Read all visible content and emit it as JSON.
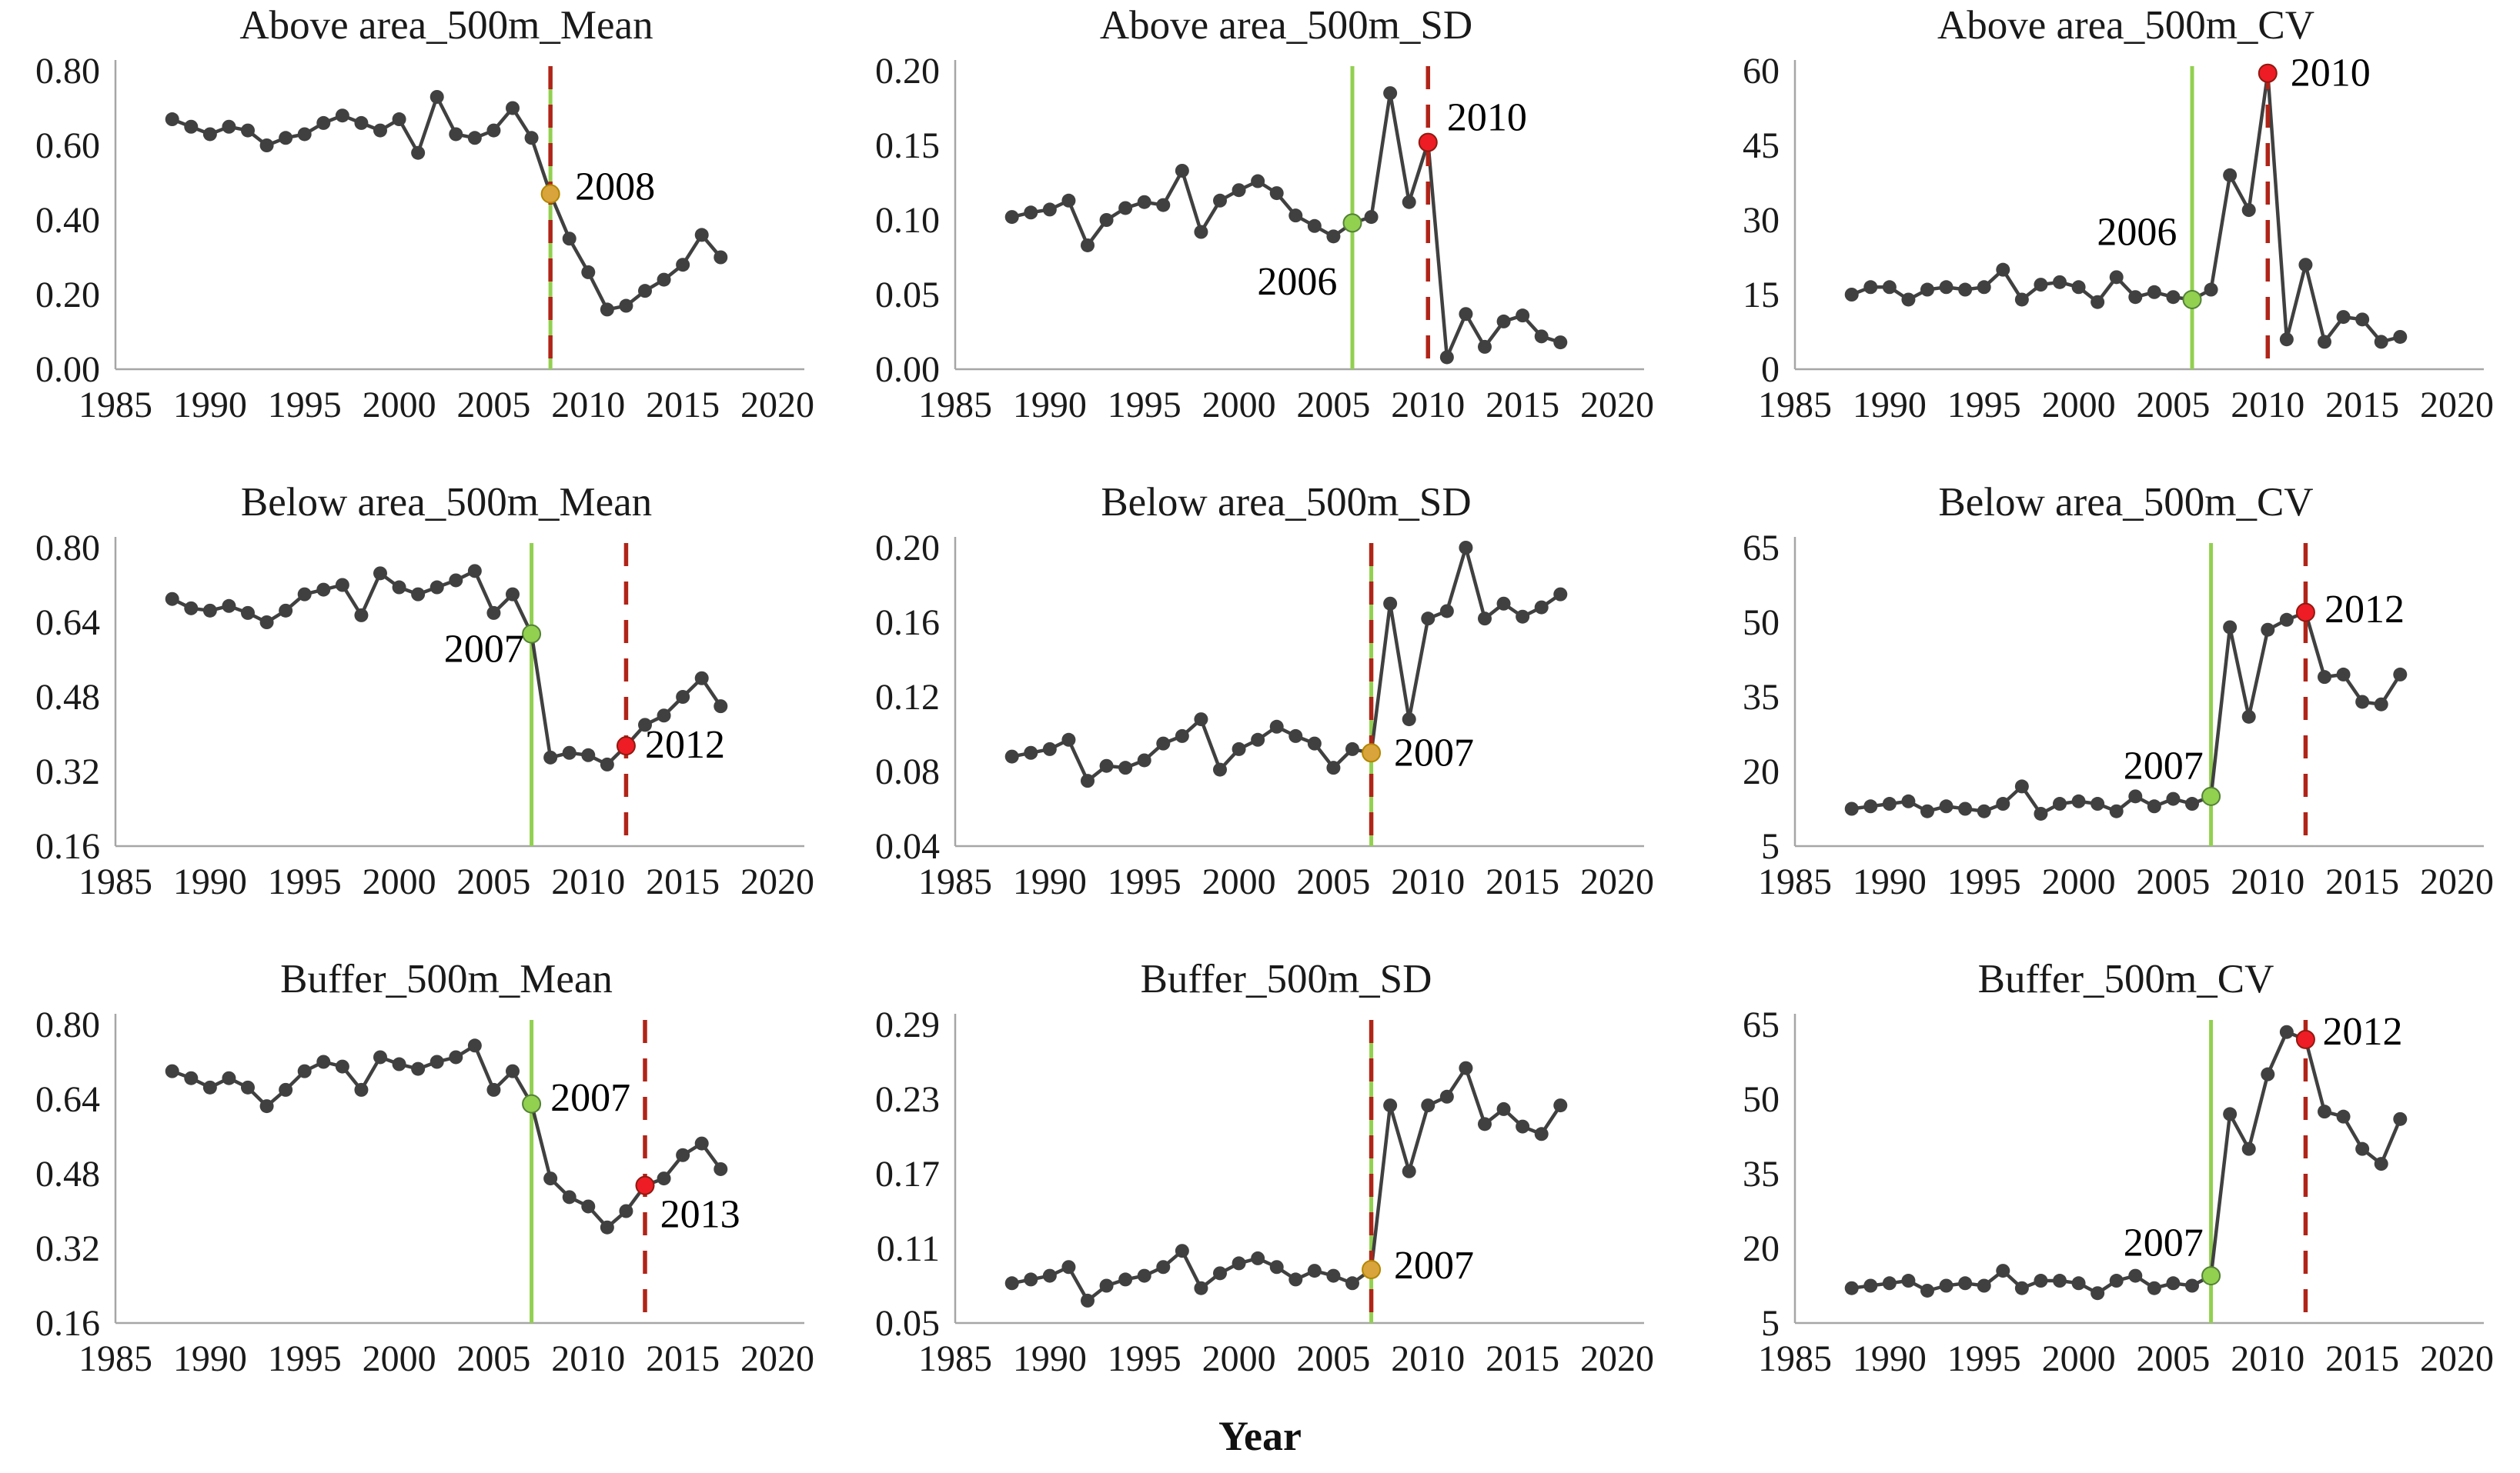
{
  "figure": {
    "xlabel": "Year",
    "xlim": [
      1985,
      2020
    ],
    "x_ticks": [
      1985,
      1990,
      1995,
      2000,
      2005,
      2010,
      2015,
      2020
    ],
    "years": [
      1988,
      1989,
      1990,
      1991,
      1992,
      1993,
      1994,
      1995,
      1996,
      1997,
      1998,
      1999,
      2000,
      2001,
      2002,
      2003,
      2004,
      2005,
      2006,
      2007,
      2008,
      2009,
      2010,
      2011,
      2012,
      2013,
      2014,
      2015,
      2016,
      2017
    ],
    "grid": "off",
    "legend": "none",
    "colors": {
      "series": "#404040",
      "axis": "#a6a6a6",
      "text": "#1a1a1a",
      "green_line": "#92d050",
      "green_marker": "#92d050",
      "green_marker_stroke": "#538135",
      "red_line": "#b02418",
      "red_marker": "#ee1c25",
      "red_marker_stroke": "#8f1a10",
      "gold_marker": "#d9a43b",
      "gold_marker_stroke": "#b38600"
    }
  },
  "chart_data": [
    {
      "type": "line",
      "title": "Above area_500m_Mean",
      "xlabel": "",
      "ylabel": "",
      "ylim": [
        0.0,
        0.8
      ],
      "ytick_labels": [
        "0.00",
        "0.20",
        "0.40",
        "0.60",
        "0.80"
      ],
      "values": [
        0.67,
        0.65,
        0.63,
        0.65,
        0.64,
        0.6,
        0.62,
        0.63,
        0.66,
        0.68,
        0.66,
        0.64,
        0.67,
        0.58,
        0.73,
        0.63,
        0.62,
        0.64,
        0.7,
        0.62,
        0.47,
        0.35,
        0.26,
        0.16,
        0.17,
        0.21,
        0.24,
        0.28,
        0.36,
        0.3
      ],
      "vlines": [
        {
          "year": 2008,
          "color": "green",
          "style": "solid"
        },
        {
          "year": 2008,
          "color": "red",
          "style": "dashed"
        }
      ],
      "markers": [
        {
          "year": 2008,
          "value": 0.47,
          "color": "gold"
        }
      ],
      "annotations": [
        {
          "text": "2008",
          "year": 2009.3,
          "value": 0.455,
          "anchor": "start"
        }
      ]
    },
    {
      "type": "line",
      "title": "Above area_500m_SD",
      "xlabel": "",
      "ylabel": "",
      "ylim": [
        0.0,
        0.2
      ],
      "ytick_labels": [
        "0.00",
        "0.05",
        "0.10",
        "0.15",
        "0.20"
      ],
      "values": [
        0.102,
        0.105,
        0.107,
        0.113,
        0.083,
        0.1,
        0.108,
        0.112,
        0.11,
        0.133,
        0.092,
        0.113,
        0.12,
        0.126,
        0.118,
        0.103,
        0.096,
        0.089,
        0.098,
        0.102,
        0.185,
        0.112,
        0.152,
        0.008,
        0.037,
        0.015,
        0.032,
        0.036,
        0.022,
        0.018
      ],
      "vlines": [
        {
          "year": 2006,
          "color": "green",
          "style": "solid"
        },
        {
          "year": 2010,
          "color": "red",
          "style": "dashed"
        }
      ],
      "markers": [
        {
          "year": 2006,
          "value": 0.098,
          "color": "green"
        },
        {
          "year": 2010,
          "value": 0.152,
          "color": "red"
        }
      ],
      "annotations": [
        {
          "text": "2006",
          "year": 2005.2,
          "value": 0.05,
          "anchor": "end"
        },
        {
          "text": "2010",
          "year": 2011.0,
          "value": 0.16,
          "anchor": "start"
        }
      ]
    },
    {
      "type": "line",
      "title": "Above area_500m_CV",
      "xlabel": "",
      "ylabel": "",
      "ylim": [
        0,
        60
      ],
      "ytick_labels": [
        "0",
        "15",
        "30",
        "45",
        "60"
      ],
      "values": [
        15,
        16.5,
        16.5,
        14,
        16,
        16.5,
        16,
        16.5,
        20,
        14,
        17,
        17.5,
        16.5,
        13.5,
        18.5,
        14.5,
        15.5,
        14.5,
        14,
        16,
        39,
        32,
        59.5,
        6,
        21,
        5.5,
        10.5,
        10,
        5.5,
        6.5
      ],
      "vlines": [
        {
          "year": 2006,
          "color": "green",
          "style": "solid"
        },
        {
          "year": 2010,
          "color": "red",
          "style": "dashed"
        }
      ],
      "markers": [
        {
          "year": 2006,
          "value": 14,
          "color": "green"
        },
        {
          "year": 2010,
          "value": 59.5,
          "color": "red"
        }
      ],
      "annotations": [
        {
          "text": "2006",
          "year": 2005.2,
          "value": 25,
          "anchor": "end"
        },
        {
          "text": "2010",
          "year": 2011.2,
          "value": 57,
          "anchor": "start"
        }
      ]
    },
    {
      "type": "line",
      "title": "Below area_500m_Mean",
      "xlabel": "",
      "ylabel": "",
      "ylim": [
        0.16,
        0.8
      ],
      "ytick_labels": [
        "0.16",
        "0.32",
        "0.48",
        "0.64",
        "0.80"
      ],
      "values": [
        0.69,
        0.67,
        0.665,
        0.675,
        0.66,
        0.64,
        0.665,
        0.7,
        0.71,
        0.72,
        0.655,
        0.745,
        0.715,
        0.7,
        0.715,
        0.73,
        0.75,
        0.66,
        0.7,
        0.615,
        0.35,
        0.36,
        0.355,
        0.335,
        0.375,
        0.42,
        0.44,
        0.48,
        0.52,
        0.46
      ],
      "vlines": [
        {
          "year": 2007,
          "color": "green",
          "style": "solid"
        },
        {
          "year": 2012,
          "color": "red",
          "style": "dashed"
        }
      ],
      "markers": [
        {
          "year": 2007,
          "value": 0.615,
          "color": "green"
        },
        {
          "year": 2012,
          "value": 0.375,
          "color": "red"
        }
      ],
      "annotations": [
        {
          "text": "2007",
          "year": 2006.6,
          "value": 0.555,
          "anchor": "end"
        },
        {
          "text": "2012",
          "year": 2013.0,
          "value": 0.35,
          "anchor": "start"
        }
      ]
    },
    {
      "type": "line",
      "title": "Below area_500m_SD",
      "xlabel": "",
      "ylabel": "",
      "ylim": [
        0.04,
        0.2
      ],
      "ytick_labels": [
        "0.04",
        "0.08",
        "0.12",
        "0.16",
        "0.20"
      ],
      "values": [
        0.088,
        0.09,
        0.092,
        0.097,
        0.075,
        0.083,
        0.082,
        0.086,
        0.095,
        0.099,
        0.108,
        0.081,
        0.092,
        0.097,
        0.104,
        0.099,
        0.095,
        0.082,
        0.092,
        0.09,
        0.17,
        0.108,
        0.162,
        0.166,
        0.2,
        0.162,
        0.17,
        0.163,
        0.168,
        0.175
      ],
      "vlines": [
        {
          "year": 2007,
          "color": "green",
          "style": "solid"
        },
        {
          "year": 2007,
          "color": "red",
          "style": "dashed"
        }
      ],
      "markers": [
        {
          "year": 2007,
          "value": 0.09,
          "color": "gold"
        }
      ],
      "annotations": [
        {
          "text": "2007",
          "year": 2008.2,
          "value": 0.083,
          "anchor": "start"
        }
      ]
    },
    {
      "type": "line",
      "title": "Below area_500m_CV",
      "xlabel": "",
      "ylabel": "",
      "ylim": [
        5,
        65
      ],
      "ytick_labels": [
        "5",
        "20",
        "35",
        "50",
        "65"
      ],
      "values": [
        12.5,
        13,
        13.5,
        14,
        12,
        13,
        12.5,
        12,
        13.5,
        17,
        11.5,
        13.5,
        14,
        13.5,
        12,
        15,
        13,
        14.5,
        13.5,
        15,
        49,
        31,
        48.5,
        50.5,
        52,
        39,
        39.5,
        34,
        33.5,
        39.5
      ],
      "vlines": [
        {
          "year": 2007,
          "color": "green",
          "style": "solid"
        },
        {
          "year": 2012,
          "color": "red",
          "style": "dashed"
        }
      ],
      "markers": [
        {
          "year": 2007,
          "value": 15,
          "color": "green"
        },
        {
          "year": 2012,
          "value": 52,
          "color": "red"
        }
      ],
      "annotations": [
        {
          "text": "2007",
          "year": 2006.6,
          "value": 18.5,
          "anchor": "end"
        },
        {
          "text": "2012",
          "year": 2013.0,
          "value": 50,
          "anchor": "start"
        }
      ]
    },
    {
      "type": "line",
      "title": "Buffer_500m_Mean",
      "xlabel": "",
      "ylabel": "",
      "ylim": [
        0.16,
        0.8
      ],
      "ytick_labels": [
        "0.16",
        "0.32",
        "0.48",
        "0.64",
        "0.80"
      ],
      "values": [
        0.7,
        0.685,
        0.665,
        0.685,
        0.665,
        0.625,
        0.66,
        0.7,
        0.72,
        0.71,
        0.66,
        0.73,
        0.715,
        0.705,
        0.72,
        0.73,
        0.755,
        0.66,
        0.7,
        0.63,
        0.47,
        0.43,
        0.41,
        0.365,
        0.4,
        0.455,
        0.47,
        0.52,
        0.545,
        0.49
      ],
      "vlines": [
        {
          "year": 2007,
          "color": "green",
          "style": "solid"
        },
        {
          "year": 2013,
          "color": "red",
          "style": "dashed"
        }
      ],
      "markers": [
        {
          "year": 2007,
          "value": 0.63,
          "color": "green"
        },
        {
          "year": 2013,
          "value": 0.455,
          "color": "red"
        }
      ],
      "annotations": [
        {
          "text": "2007",
          "year": 2008.0,
          "value": 0.615,
          "anchor": "start"
        },
        {
          "text": "2013",
          "year": 2013.8,
          "value": 0.365,
          "anchor": "start"
        }
      ]
    },
    {
      "type": "line",
      "title": "Buffer_500m_SD",
      "xlabel": "",
      "ylabel": "",
      "ylim": [
        0.05,
        0.29
      ],
      "ytick_labels": [
        "0.05",
        "0.11",
        "0.17",
        "0.23",
        "0.29"
      ],
      "values": [
        0.082,
        0.085,
        0.088,
        0.095,
        0.068,
        0.08,
        0.085,
        0.088,
        0.095,
        0.108,
        0.078,
        0.09,
        0.098,
        0.102,
        0.095,
        0.085,
        0.092,
        0.088,
        0.082,
        0.093,
        0.225,
        0.172,
        0.225,
        0.232,
        0.255,
        0.21,
        0.222,
        0.208,
        0.202,
        0.225
      ],
      "vlines": [
        {
          "year": 2007,
          "color": "green",
          "style": "solid"
        },
        {
          "year": 2007,
          "color": "red",
          "style": "dashed"
        }
      ],
      "markers": [
        {
          "year": 2007,
          "value": 0.093,
          "color": "gold"
        }
      ],
      "annotations": [
        {
          "text": "2007",
          "year": 2008.2,
          "value": 0.086,
          "anchor": "start"
        }
      ]
    },
    {
      "type": "line",
      "title": "Buffer_500m_CV",
      "xlabel": "",
      "ylabel": "",
      "ylim": [
        5,
        65
      ],
      "ytick_labels": [
        "5",
        "20",
        "35",
        "50",
        "65"
      ],
      "values": [
        12,
        12.5,
        13,
        13.5,
        11.5,
        12.5,
        13,
        12.5,
        15.5,
        12,
        13.5,
        13.5,
        13,
        11,
        13.5,
        14.5,
        12,
        13,
        12.5,
        14.5,
        47,
        40,
        55,
        63.5,
        62,
        47.5,
        46.5,
        40,
        37,
        46
      ],
      "vlines": [
        {
          "year": 2007,
          "color": "green",
          "style": "solid"
        },
        {
          "year": 2012,
          "color": "red",
          "style": "dashed"
        }
      ],
      "markers": [
        {
          "year": 2007,
          "value": 14.5,
          "color": "green"
        },
        {
          "year": 2012,
          "value": 62,
          "color": "red"
        }
      ],
      "annotations": [
        {
          "text": "2007",
          "year": 2006.6,
          "value": 18.5,
          "anchor": "end"
        },
        {
          "text": "2012",
          "year": 2012.9,
          "value": 61,
          "anchor": "start"
        }
      ]
    }
  ]
}
